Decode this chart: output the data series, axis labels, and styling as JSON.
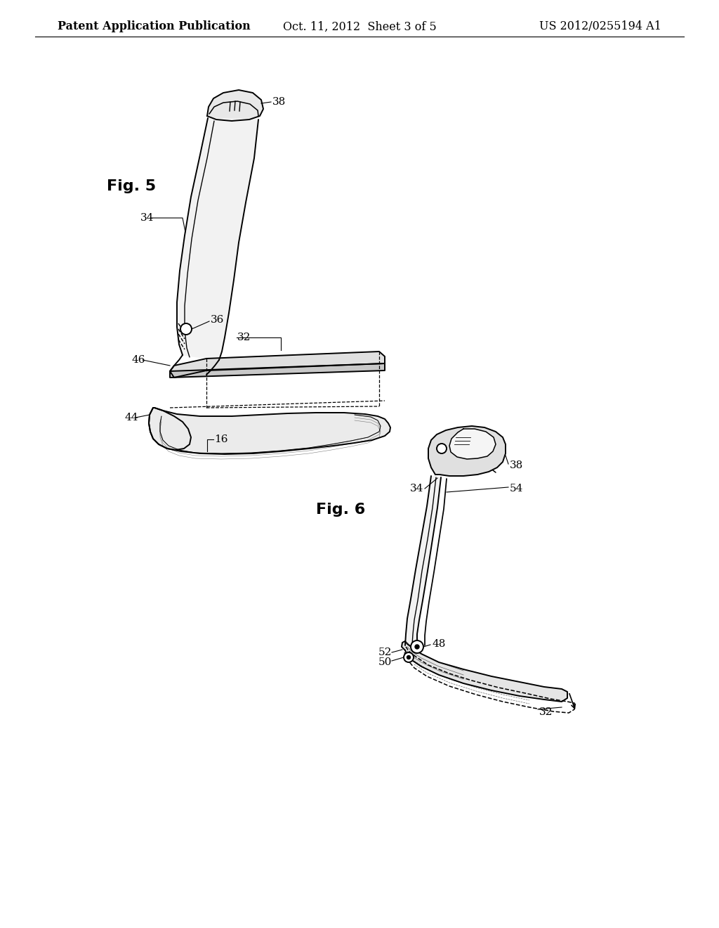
{
  "background_color": "#ffffff",
  "header_left": "Patent Application Publication",
  "header_center": "Oct. 11, 2012  Sheet 3 of 5",
  "header_right": "US 2012/0255194 A1",
  "header_fontsize": 11.5,
  "fig5_label": "Fig. 5",
  "fig6_label": "Fig. 6",
  "label_fontsize": 16,
  "ref_fontsize": 11,
  "line_color": "#000000",
  "line_width": 1.4
}
